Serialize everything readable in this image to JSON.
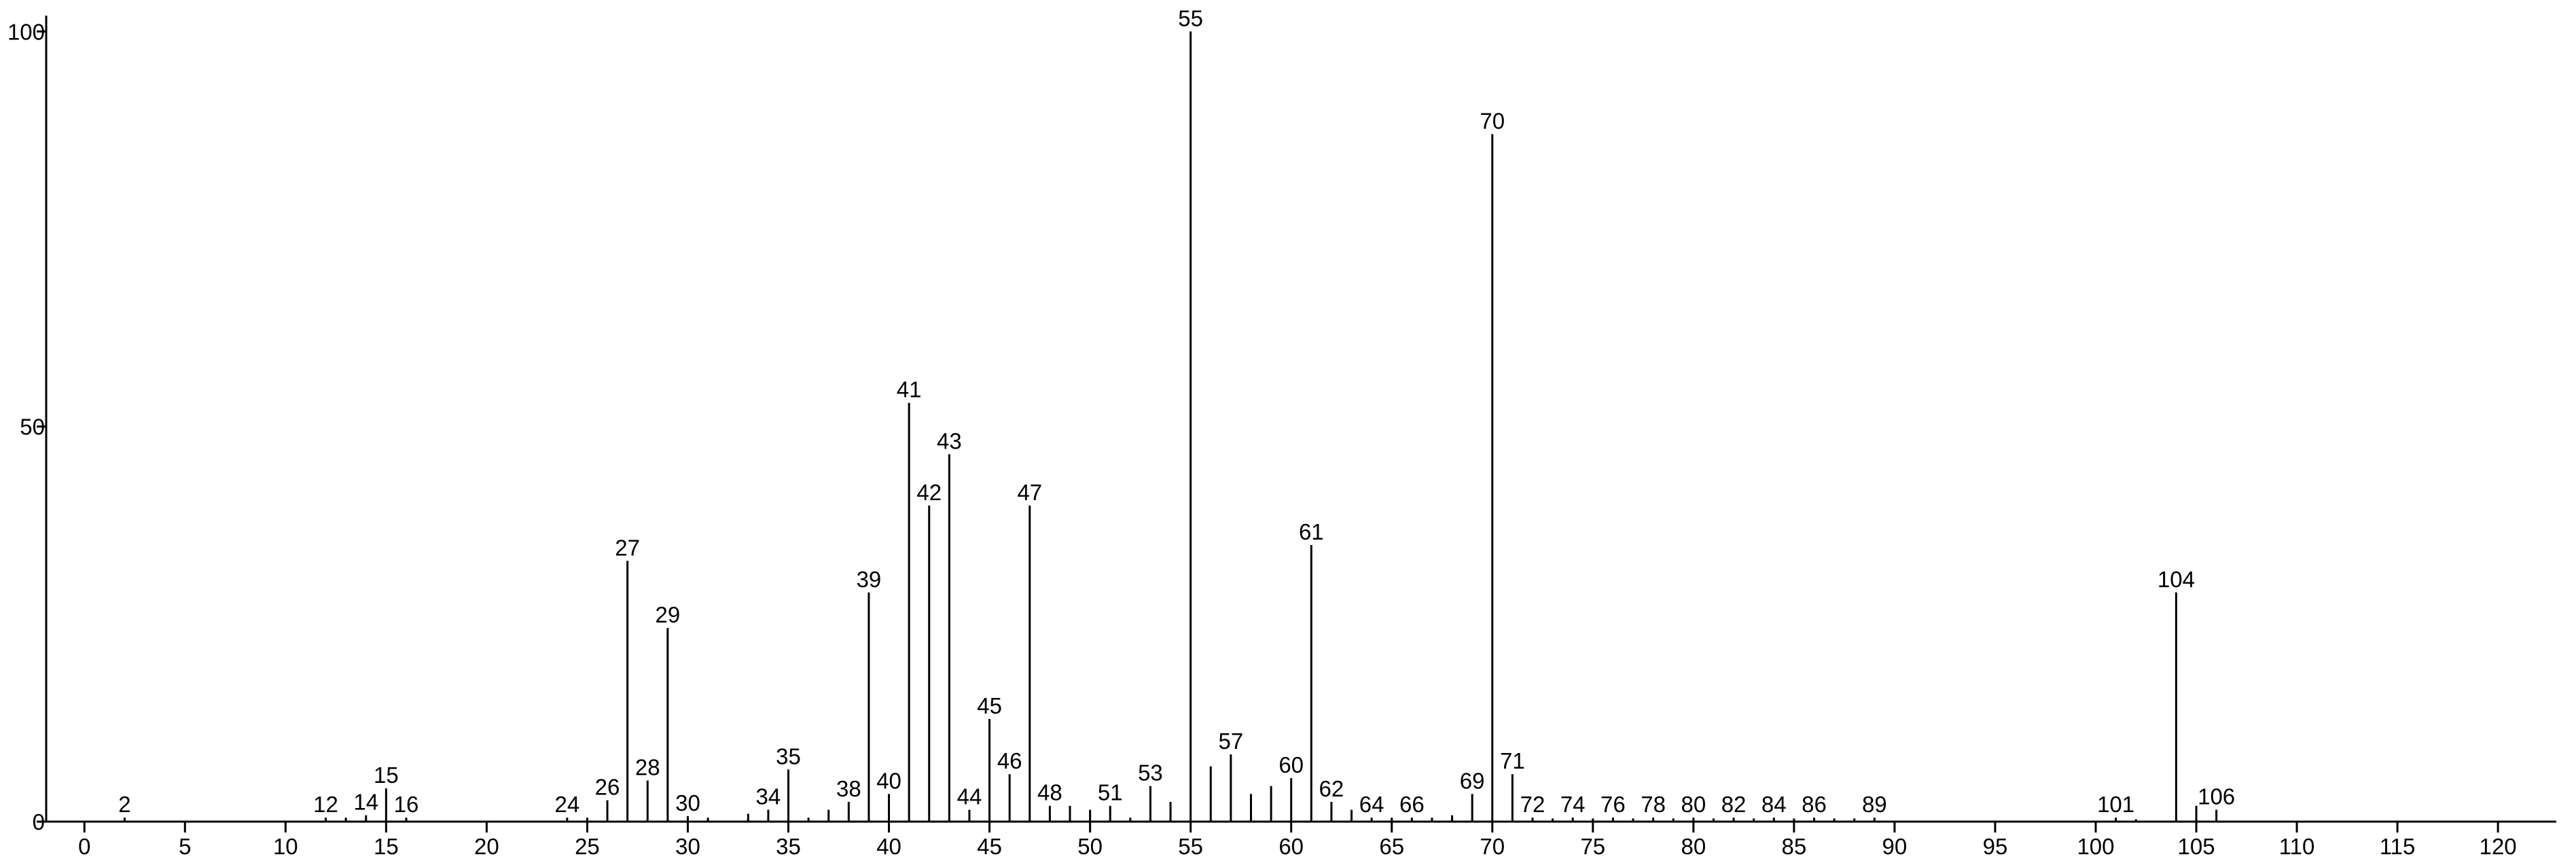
{
  "chart_data": {
    "type": "stem",
    "x": [
      2,
      12,
      13,
      14,
      15,
      16,
      24,
      25,
      26,
      27,
      28,
      29,
      30,
      31,
      33,
      34,
      35,
      36,
      37,
      38,
      39,
      40,
      41,
      42,
      43,
      44,
      45,
      46,
      47,
      48,
      49,
      50,
      51,
      52,
      53,
      54,
      55,
      56,
      57,
      58,
      59,
      60,
      61,
      62,
      63,
      64,
      65,
      66,
      67,
      68,
      69,
      70,
      71,
      72,
      73,
      74,
      75,
      76,
      77,
      78,
      79,
      80,
      81,
      82,
      83,
      84,
      85,
      86,
      87,
      88,
      89,
      101,
      102,
      104,
      105,
      106
    ],
    "values": [
      0.5,
      0.5,
      0.5,
      0.8,
      4.2,
      0.5,
      0.5,
      0.5,
      2.7,
      33,
      5.2,
      24.5,
      0.7,
      0.5,
      1,
      1.5,
      6.6,
      0.5,
      1.5,
      2.5,
      29,
      3.5,
      53,
      40,
      46.5,
      1.5,
      13,
      6,
      40,
      2,
      2,
      1.5,
      2,
      0.5,
      4.5,
      2.5,
      100,
      7,
      8.5,
      3.5,
      4.5,
      5.5,
      35,
      2.5,
      1.5,
      0.5,
      0.5,
      0.5,
      0.5,
      0.8,
      3.5,
      87,
      6,
      0.5,
      0.4,
      0.5,
      0.4,
      0.5,
      0.4,
      0.5,
      0.4,
      0.5,
      0.4,
      0.5,
      0.4,
      0.5,
      0.4,
      0.5,
      0.4,
      0.4,
      0.5,
      0.5,
      0.3,
      29,
      2,
      1.5
    ],
    "labeled": [
      true,
      true,
      false,
      true,
      true,
      true,
      true,
      false,
      true,
      true,
      true,
      true,
      true,
      false,
      false,
      true,
      true,
      false,
      false,
      true,
      true,
      true,
      true,
      true,
      true,
      true,
      true,
      true,
      true,
      true,
      false,
      false,
      true,
      false,
      true,
      false,
      true,
      false,
      true,
      false,
      false,
      true,
      true,
      true,
      false,
      true,
      false,
      true,
      false,
      false,
      true,
      true,
      true,
      true,
      false,
      true,
      false,
      true,
      false,
      true,
      false,
      true,
      false,
      true,
      false,
      true,
      false,
      true,
      false,
      false,
      true,
      true,
      false,
      true,
      false,
      true
    ],
    "color": "#000000",
    "xlim": [
      -1.9,
      122.9
    ],
    "xticks": [
      0,
      5,
      10,
      15,
      20,
      25,
      30,
      35,
      40,
      45,
      50,
      55,
      60,
      65,
      70,
      75,
      80,
      85,
      90,
      95,
      100,
      105,
      110,
      115,
      120
    ],
    "ylim": [
      0,
      102
    ],
    "yticks": [
      0,
      50,
      100
    ]
  }
}
